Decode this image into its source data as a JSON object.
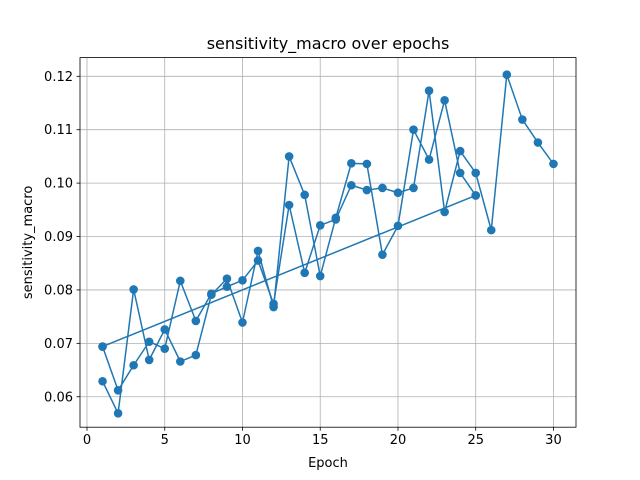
{
  "chart_data": {
    "type": "line",
    "title": "sensitivity_macro over epochs",
    "xlabel": "Epoch",
    "ylabel": "sensitivity_macro",
    "xlim": [
      -0.45,
      31.45
    ],
    "ylim": [
      0.0543,
      0.1235
    ],
    "xticks": [
      0,
      5,
      10,
      15,
      20,
      25,
      30
    ],
    "yticks": [
      0.06,
      0.07,
      0.08,
      0.09,
      0.1,
      0.11,
      0.12
    ],
    "ytick_labels": [
      "0.06",
      "0.07",
      "0.08",
      "0.09",
      "0.10",
      "0.11",
      "0.12"
    ],
    "grid": true,
    "color": "#1f77b4",
    "series": [
      {
        "x": [
          1,
          2,
          3,
          4,
          5,
          6,
          7,
          8,
          9,
          10,
          11,
          12,
          13,
          14,
          15,
          16,
          17,
          18,
          19,
          20,
          21,
          22,
          23,
          24,
          25
        ],
        "y": [
          0.0629,
          0.0569,
          0.0801,
          0.0669,
          0.0726,
          0.0666,
          0.0678,
          0.0791,
          0.0821,
          0.0739,
          0.0873,
          0.0768,
          0.105,
          0.0978,
          0.0826,
          0.0935,
          0.1037,
          0.1036,
          0.0866,
          0.092,
          0.11,
          0.1044,
          0.1155,
          0.1019,
          0.0977
        ]
      },
      {
        "x": [
          1,
          2,
          3,
          4,
          5,
          6,
          7,
          8,
          9,
          10,
          11,
          12,
          13,
          14,
          15,
          16,
          17,
          18,
          19,
          20,
          21,
          22,
          23,
          24,
          25,
          26,
          27,
          28,
          29,
          30
        ],
        "y": [
          0.0694,
          0.0612,
          0.0659,
          0.0703,
          0.069,
          0.0817,
          0.0742,
          0.0793,
          0.0806,
          0.0818,
          0.0855,
          0.0774,
          0.0959,
          0.0832,
          0.0921,
          0.0932,
          0.0996,
          0.0987,
          0.0991,
          0.0982,
          0.0991,
          0.1173,
          0.0946,
          0.106,
          0.1019,
          0.0912,
          0.1203,
          0.1119,
          0.1076,
          0.1036
        ]
      },
      {
        "x": [
          1,
          25
        ],
        "y": [
          0.0694,
          0.0977
        ]
      }
    ]
  }
}
